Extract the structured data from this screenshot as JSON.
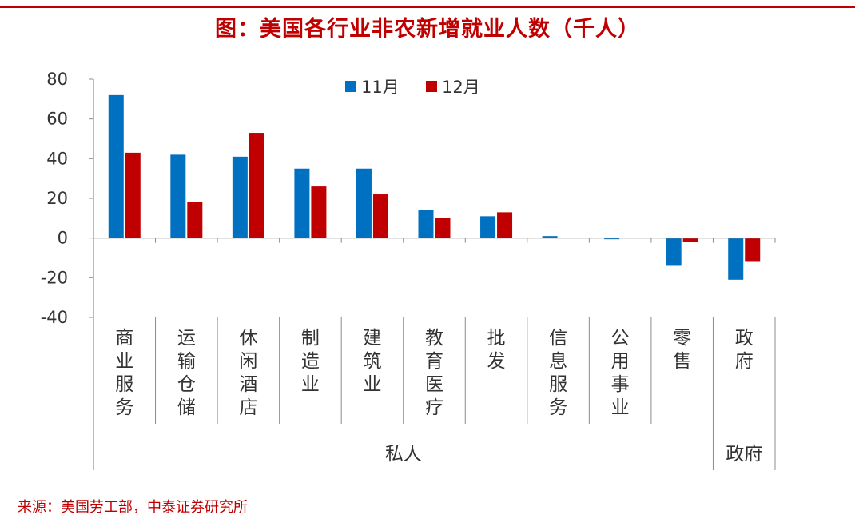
{
  "title": "图：美国各行业非农新增就业人数（千人）",
  "source": "来源：美国劳工部，中泰证券研究所",
  "colors": {
    "nov": "#0070c0",
    "dec": "#c00000",
    "accent": "#c00000"
  },
  "chart_data": {
    "type": "bar",
    "categories": [
      "商业服务",
      "运输仓储",
      "休闲酒店",
      "制造业",
      "建筑业",
      "教育医疗",
      "批发",
      "信息服务",
      "公用事业",
      "零售",
      "政府"
    ],
    "series": [
      {
        "name": "11月",
        "values": [
          72,
          42,
          41,
          35,
          35,
          14,
          11,
          1,
          -0.5,
          -14,
          -21
        ]
      },
      {
        "name": "12月",
        "values": [
          43,
          18,
          53,
          26,
          22,
          10,
          13,
          0,
          0,
          -2,
          -12
        ]
      }
    ],
    "groups": [
      {
        "label": "私人",
        "from": 0,
        "to": 9
      },
      {
        "label": "政府",
        "from": 10,
        "to": 10
      }
    ],
    "ylim": [
      -40,
      80
    ],
    "yticks": [
      80,
      60,
      40,
      20,
      0,
      -20,
      -40
    ],
    "legend": "top-center",
    "grid": false
  }
}
